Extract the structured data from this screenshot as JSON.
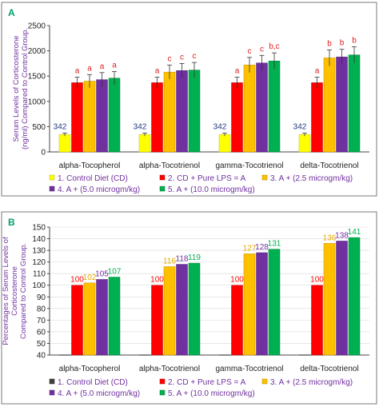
{
  "chart_data": [
    {
      "panel": "A",
      "type": "bar",
      "ylabel_lines": [
        "Serum Levels of Corticosterone",
        "(ng/ml) Compared to Control Group."
      ],
      "ylim": [
        0,
        2500
      ],
      "yticks": [
        0,
        500,
        1000,
        1500,
        2000,
        2500
      ],
      "categories": [
        "alpha-Tocopherol",
        "alpha-Tocotrienol",
        "gamma-Tocotrienol",
        "delta-Tocotrienol"
      ],
      "series": [
        {
          "name": "1. Control Diet (CD)",
          "color": "#ffff00",
          "values": [
            342,
            342,
            342,
            342
          ],
          "errors": [
            30,
            30,
            30,
            30
          ]
        },
        {
          "name": "2. CD + Pure LPS = A",
          "color": "#ff0000",
          "values": [
            1370,
            1370,
            1370,
            1370
          ],
          "errors": [
            110,
            110,
            110,
            110
          ]
        },
        {
          "name": "3. A + (2.5 microgm/kg)",
          "color": "#ffc000",
          "values": [
            1400,
            1580,
            1720,
            1860
          ],
          "errors": [
            130,
            140,
            150,
            160
          ]
        },
        {
          "name": "4. A + (5.0 microgm/kg)",
          "color": "#7030a0",
          "values": [
            1430,
            1610,
            1760,
            1880
          ],
          "errors": [
            140,
            140,
            150,
            150
          ]
        },
        {
          "name": "5. A +  (10.0  microgm/kg)",
          "color": "#00b050",
          "values": [
            1460,
            1620,
            1800,
            1920
          ],
          "errors": [
            130,
            150,
            160,
            160
          ]
        }
      ],
      "bar_value_labels": [
        [
          "342",
          "",
          "",
          "",
          ""
        ],
        [
          "342",
          "",
          "",
          "",
          ""
        ],
        [
          "342",
          "",
          "",
          "",
          ""
        ],
        [
          "342",
          "",
          "",
          "",
          ""
        ]
      ],
      "significance_labels": [
        [
          "",
          "a",
          "a",
          "a",
          "a"
        ],
        [
          "",
          "a",
          "c",
          "c",
          "c"
        ],
        [
          "",
          "a",
          "c",
          "c",
          "b,c"
        ],
        [
          "",
          "a",
          "b",
          "b",
          "b"
        ]
      ],
      "legend": {
        "row1": [
          "1. Control Diet (CD)",
          "2. CD + Pure LPS = A",
          "3. A + (2.5 microgm/kg)"
        ],
        "row2": [
          "4. A + (5.0 microgm/kg)",
          "5. A +  (10.0  microgm/kg)"
        ]
      },
      "grid": false
    },
    {
      "panel": "B",
      "type": "bar",
      "ylabel_lines": [
        "Percentages of Serum Levels of",
        "Corticosterone",
        "Compared to Control Group."
      ],
      "ylim": [
        40,
        150
      ],
      "yticks": [
        40,
        50,
        60,
        70,
        80,
        90,
        100,
        110,
        120,
        130,
        140,
        150
      ],
      "categories": [
        "alpha-Tocopherol",
        "alpha-Tocotrienol",
        "gamma-Tocotrienol",
        "delta-Tocotrienol"
      ],
      "series": [
        {
          "name": "1. Control Diet (CD)",
          "color": "#404040",
          "values": [
            null,
            null,
            null,
            null
          ]
        },
        {
          "name": "2. CD + Pure LPS = A",
          "color": "#ff0000",
          "values": [
            100,
            100,
            100,
            100
          ]
        },
        {
          "name": "3. A + (2.5 microgm/kg)",
          "color": "#ffc000",
          "values": [
            102,
            116,
            127,
            136
          ]
        },
        {
          "name": "4. A + (5.0 microgm/kg)",
          "color": "#7030a0",
          "values": [
            105,
            118,
            128,
            138
          ]
        },
        {
          "name": "5. A +  (10.0  microgm/kg)",
          "color": "#00b050",
          "values": [
            107,
            119,
            131,
            141
          ]
        }
      ],
      "value_labels": [
        [
          "",
          "100",
          "102",
          "105",
          "107"
        ],
        [
          "",
          "100",
          "116",
          "118",
          "119"
        ],
        [
          "",
          "100",
          "127",
          "128",
          "131"
        ],
        [
          "",
          "100",
          "136",
          "138",
          "141"
        ]
      ],
      "legend": {
        "row1": [
          "1. Control Diet (CD)",
          "2. CD + Pure LPS = A",
          "3. A + (2.5 microgm/kg)"
        ],
        "row2": [
          "4. A + (5.0 microgm/kg)",
          "5. A +  (10.0  microgm/kg)"
        ]
      },
      "grid": true
    }
  ]
}
